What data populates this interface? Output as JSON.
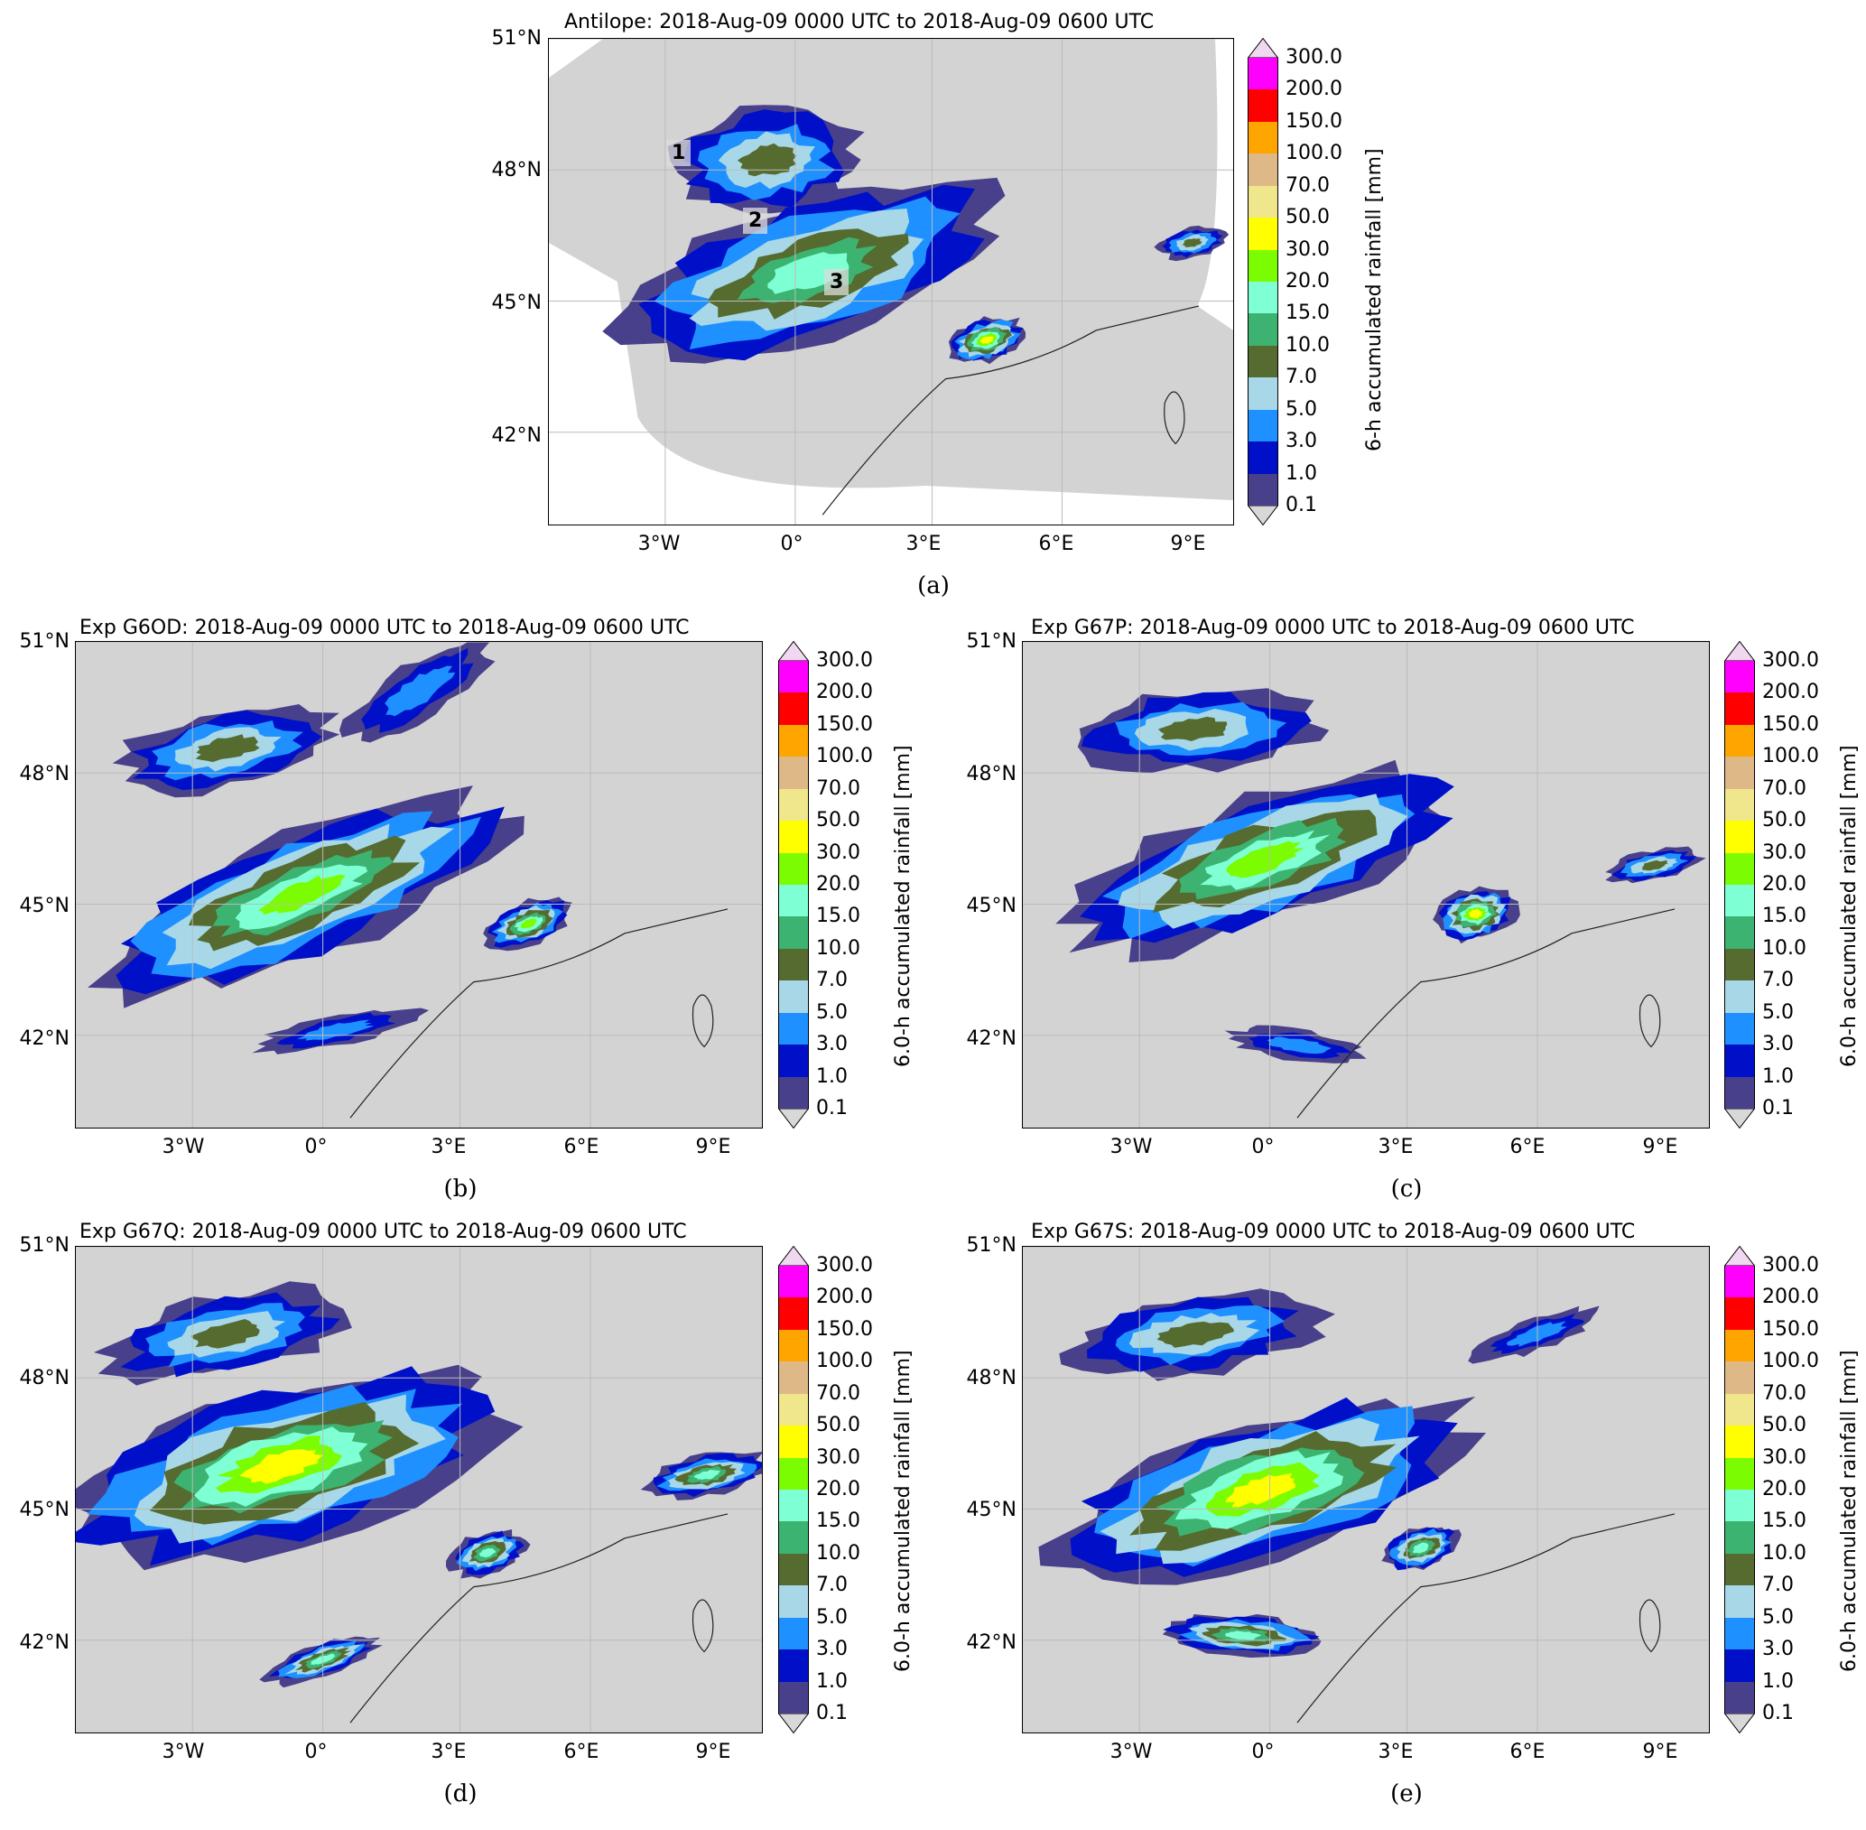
{
  "panels": [
    {
      "id": "a",
      "title": "Antilope: 2018-Aug-09 0000 UTC to 2018-Aug-09 0600 UTC",
      "caption": "(a)",
      "colorbar_label": "6-h accumulated rainfall [mm]"
    },
    {
      "id": "b",
      "title": "Exp G6OD: 2018-Aug-09 0000 UTC to 2018-Aug-09 0600 UTC",
      "caption": "(b)",
      "colorbar_label": "6.0-h accumulated rainfall [mm]"
    },
    {
      "id": "c",
      "title": "Exp G67P: 2018-Aug-09 0000 UTC to 2018-Aug-09 0600 UTC",
      "caption": "(c)",
      "colorbar_label": "6.0-h accumulated rainfall [mm]"
    },
    {
      "id": "d",
      "title": "Exp G67Q: 2018-Aug-09 0000 UTC to 2018-Aug-09 0600 UTC",
      "caption": "(d)",
      "colorbar_label": "6.0-h accumulated rainfall [mm]"
    },
    {
      "id": "e",
      "title": "Exp G67S: 2018-Aug-09 0000 UTC to 2018-Aug-09 0600 UTC",
      "caption": "(e)",
      "colorbar_label": "6.0-h accumulated rainfall [mm]"
    }
  ],
  "lat_ticks": [
    "51°N",
    "48°N",
    "45°N",
    "42°N"
  ],
  "lon_ticks": [
    "3°W",
    "0°",
    "3°E",
    "6°E",
    "9°E"
  ],
  "region_labels": [
    "1",
    "2",
    "3"
  ],
  "colorbar": {
    "levels": [
      "0.1",
      "1.0",
      "3.0",
      "5.0",
      "7.0",
      "10.0",
      "15.0",
      "20.0",
      "30.0",
      "50.0",
      "70.0",
      "100.0",
      "150.0",
      "200.0",
      "300.0"
    ],
    "colors": [
      "#48408a",
      "#0010c8",
      "#1e90ff",
      "#a8d8e8",
      "#556b2f",
      "#3cb371",
      "#7fffd4",
      "#7cfc00",
      "#ffff00",
      "#f0e68c",
      "#deb887",
      "#ffa500",
      "#ff0000",
      "#ff00ff"
    ],
    "under_color": "#d8d8d8",
    "over_color": "#f0d8f0"
  }
}
